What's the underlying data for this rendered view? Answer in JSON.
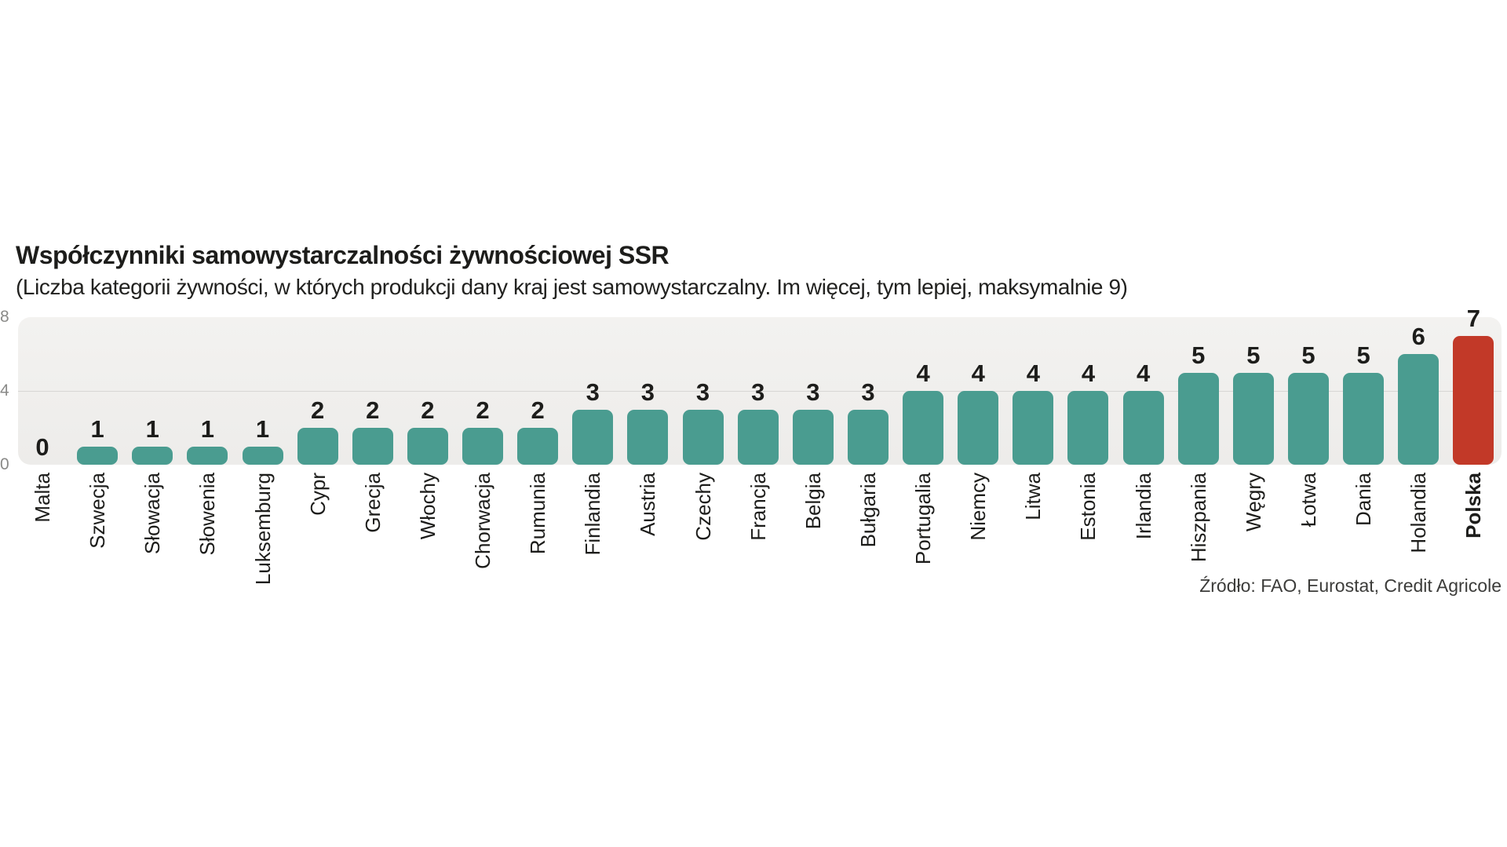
{
  "header": {
    "title": "Współczynniki samowystarczalności żywnościowej SSR",
    "subtitle": "(Liczba kategorii żywności, w których produkcji dany kraj jest samowystarczalny. Im więcej, tym lepiej, maksymalnie 9)"
  },
  "source": "Źródło: FAO, Eurostat, Credit Agricole",
  "chart_data": {
    "type": "bar",
    "title": "Współczynniki samowystarczalności żywnościowej SSR",
    "subtitle": "(Liczba kategorii żywności, w których produkcji dany kraj jest samowystarczalny. Im więcej, tym lepiej, maksymalnie 9)",
    "categories": [
      "Malta",
      "Szwecja",
      "Słowacja",
      "Słowenia",
      "Luksemburg",
      "Cypr",
      "Grecja",
      "Włochy",
      "Chorwacja",
      "Rumunia",
      "Finlandia",
      "Austria",
      "Czechy",
      "Francja",
      "Belgia",
      "Bułgaria",
      "Portugalia",
      "Niemcy",
      "Litwa",
      "Estonia",
      "Irlandia",
      "Hiszpania",
      "Węgry",
      "Łotwa",
      "Dania",
      "Holandia",
      "Polska"
    ],
    "values": [
      0,
      1,
      1,
      1,
      1,
      2,
      2,
      2,
      2,
      2,
      3,
      3,
      3,
      3,
      3,
      3,
      4,
      4,
      4,
      4,
      4,
      5,
      5,
      5,
      5,
      6,
      7
    ],
    "value_labels": [
      "0",
      "1",
      "1",
      "1",
      "1",
      "2",
      "2",
      "2",
      "2",
      "2",
      "3",
      "3",
      "3",
      "3",
      "3",
      "3",
      "4",
      "4",
      "4",
      "4",
      "4",
      "5",
      "5",
      "5",
      "5",
      "6",
      "7"
    ],
    "highlight_category": "Polska",
    "ylim": [
      0,
      8
    ],
    "yticks": [
      "0",
      "4",
      "8"
    ],
    "gridline_at": 4,
    "legend": "none",
    "bar_labels_position": "above",
    "xlabel": "",
    "ylabel": "",
    "colors": {
      "bar": "#4a9c90",
      "highlight": "#c23928",
      "plot_bg": "#efeeec",
      "gridline": "#d8d7d4",
      "axis_tick": "#8a8a88",
      "text": "#1d1d1b"
    }
  }
}
